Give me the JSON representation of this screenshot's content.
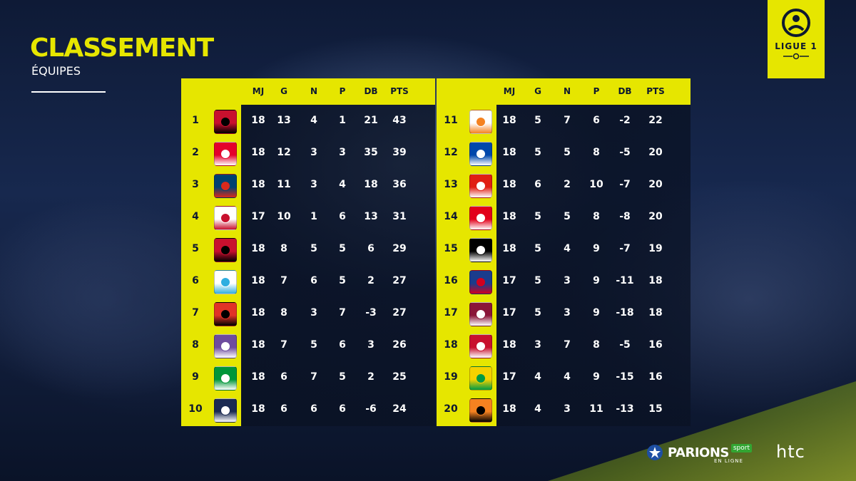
{
  "header": {
    "title": "CLASSEMENT",
    "subtitle": "ÉQUIPES"
  },
  "logo": {
    "text": "LIGUE 1",
    "icon": "ligue1-logo"
  },
  "columns": [
    "MJ",
    "G",
    "N",
    "P",
    "DB",
    "PTS"
  ],
  "colors": {
    "accent": "#e6e600",
    "dark": "#0d1830",
    "text": "#ffffff"
  },
  "standings_left": [
    {
      "rank": "1",
      "team_icon": "ogc-nice-crest",
      "mj": "18",
      "g": "13",
      "n": "4",
      "p": "1",
      "db": "21",
      "pts": "43"
    },
    {
      "rank": "2",
      "team_icon": "as-monaco-crest",
      "mj": "18",
      "g": "12",
      "n": "3",
      "p": "3",
      "db": "35",
      "pts": "39"
    },
    {
      "rank": "3",
      "team_icon": "psg-crest",
      "mj": "18",
      "g": "11",
      "n": "3",
      "p": "4",
      "db": "18",
      "pts": "36"
    },
    {
      "rank": "4",
      "team_icon": "olympique-lyonnais-crest",
      "mj": "17",
      "g": "10",
      "n": "1",
      "p": "6",
      "db": "13",
      "pts": "31"
    },
    {
      "rank": "5",
      "team_icon": "eag-guingamp-crest",
      "mj": "18",
      "g": "8",
      "n": "5",
      "p": "5",
      "db": "6",
      "pts": "29"
    },
    {
      "rank": "6",
      "team_icon": "olympique-marseille-crest",
      "mj": "18",
      "g": "7",
      "n": "6",
      "p": "5",
      "db": "2",
      "pts": "27"
    },
    {
      "rank": "7",
      "team_icon": "stade-rennais-crest",
      "mj": "18",
      "g": "8",
      "n": "3",
      "p": "7",
      "db": "-3",
      "pts": "27"
    },
    {
      "rank": "8",
      "team_icon": "toulouse-fc-crest",
      "mj": "18",
      "g": "7",
      "n": "5",
      "p": "6",
      "db": "3",
      "pts": "26"
    },
    {
      "rank": "9",
      "team_icon": "as-saint-etienne-crest",
      "mj": "18",
      "g": "6",
      "n": "7",
      "p": "5",
      "db": "2",
      "pts": "25"
    },
    {
      "rank": "10",
      "team_icon": "girondins-bordeaux-crest",
      "mj": "18",
      "g": "6",
      "n": "6",
      "p": "6",
      "db": "-6",
      "pts": "24"
    }
  ],
  "standings_right": [
    {
      "rank": "11",
      "team_icon": "montpellier-crest",
      "mj": "18",
      "g": "5",
      "n": "7",
      "p": "6",
      "db": "-2",
      "pts": "22"
    },
    {
      "rank": "12",
      "team_icon": "sc-bastia-crest",
      "mj": "18",
      "g": "5",
      "n": "5",
      "p": "8",
      "db": "-5",
      "pts": "20"
    },
    {
      "rank": "13",
      "team_icon": "losc-lille-crest",
      "mj": "18",
      "g": "6",
      "n": "2",
      "p": "10",
      "db": "-7",
      "pts": "20"
    },
    {
      "rank": "14",
      "team_icon": "as-nancy-crest",
      "mj": "18",
      "g": "5",
      "n": "5",
      "p": "8",
      "db": "-8",
      "pts": "20"
    },
    {
      "rank": "15",
      "team_icon": "angers-sco-crest",
      "mj": "18",
      "g": "5",
      "n": "4",
      "p": "9",
      "db": "-7",
      "pts": "19"
    },
    {
      "rank": "16",
      "team_icon": "sm-caen-crest",
      "mj": "17",
      "g": "5",
      "n": "3",
      "p": "9",
      "db": "-11",
      "pts": "18"
    },
    {
      "rank": "17",
      "team_icon": "fc-metz-crest",
      "mj": "17",
      "g": "5",
      "n": "3",
      "p": "9",
      "db": "-18",
      "pts": "18"
    },
    {
      "rank": "18",
      "team_icon": "dijon-fco-crest",
      "mj": "18",
      "g": "3",
      "n": "7",
      "p": "8",
      "db": "-5",
      "pts": "16"
    },
    {
      "rank": "19",
      "team_icon": "fc-nantes-crest",
      "mj": "17",
      "g": "4",
      "n": "4",
      "p": "9",
      "db": "-15",
      "pts": "16"
    },
    {
      "rank": "20",
      "team_icon": "fc-lorient-crest",
      "mj": "18",
      "g": "4",
      "n": "3",
      "p": "11",
      "db": "-13",
      "pts": "15"
    }
  ],
  "sponsors": {
    "parions_main": "PARIONS",
    "parions_tag": "sport",
    "parions_sub": "EN LIGNE",
    "htc": "htc"
  }
}
